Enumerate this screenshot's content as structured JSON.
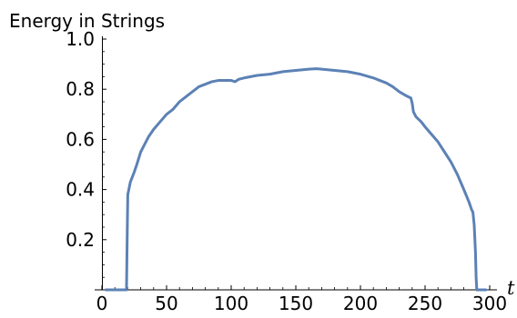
{
  "chart_data": {
    "type": "line",
    "title": "",
    "ylabel": "Energy in Strings",
    "xlabel": "t",
    "xlim": [
      0,
      300
    ],
    "ylim": [
      0,
      1.0
    ],
    "x_ticks": [
      0,
      50,
      100,
      150,
      200,
      250,
      300
    ],
    "x_tick_labels": [
      "0",
      "50",
      "100",
      "150",
      "200",
      "250",
      "300"
    ],
    "y_ticks": [
      0.2,
      0.4,
      0.6,
      0.8,
      1.0
    ],
    "y_tick_labels": [
      "0.2",
      "0.4",
      "0.6",
      "0.8",
      "1.0"
    ],
    "grid": false,
    "series": [
      {
        "color": "#5c81b5",
        "x": [
          3,
          19,
          19.5,
          20,
          22,
          25,
          27,
          30,
          33,
          36,
          40,
          45,
          50,
          55,
          60,
          65,
          70,
          75,
          80,
          85,
          90,
          95,
          100,
          103,
          106,
          110,
          115,
          120,
          130,
          140,
          150,
          160,
          166,
          170,
          180,
          190,
          200,
          210,
          215,
          220,
          225,
          230,
          235,
          239,
          240,
          241,
          243,
          247,
          250,
          255,
          260,
          265,
          270,
          275,
          280,
          284,
          286,
          287,
          288,
          289,
          289.5,
          290,
          297
        ],
        "y": [
          0,
          0,
          0.2,
          0.38,
          0.43,
          0.47,
          0.5,
          0.55,
          0.58,
          0.61,
          0.64,
          0.67,
          0.7,
          0.72,
          0.75,
          0.77,
          0.79,
          0.81,
          0.82,
          0.83,
          0.835,
          0.835,
          0.835,
          0.83,
          0.84,
          0.845,
          0.85,
          0.855,
          0.86,
          0.87,
          0.875,
          0.88,
          0.882,
          0.88,
          0.875,
          0.87,
          0.86,
          0.845,
          0.835,
          0.825,
          0.81,
          0.79,
          0.775,
          0.765,
          0.745,
          0.71,
          0.69,
          0.67,
          0.65,
          0.62,
          0.59,
          0.55,
          0.51,
          0.46,
          0.4,
          0.35,
          0.32,
          0.31,
          0.26,
          0.15,
          0.05,
          0,
          0
        ]
      }
    ]
  }
}
